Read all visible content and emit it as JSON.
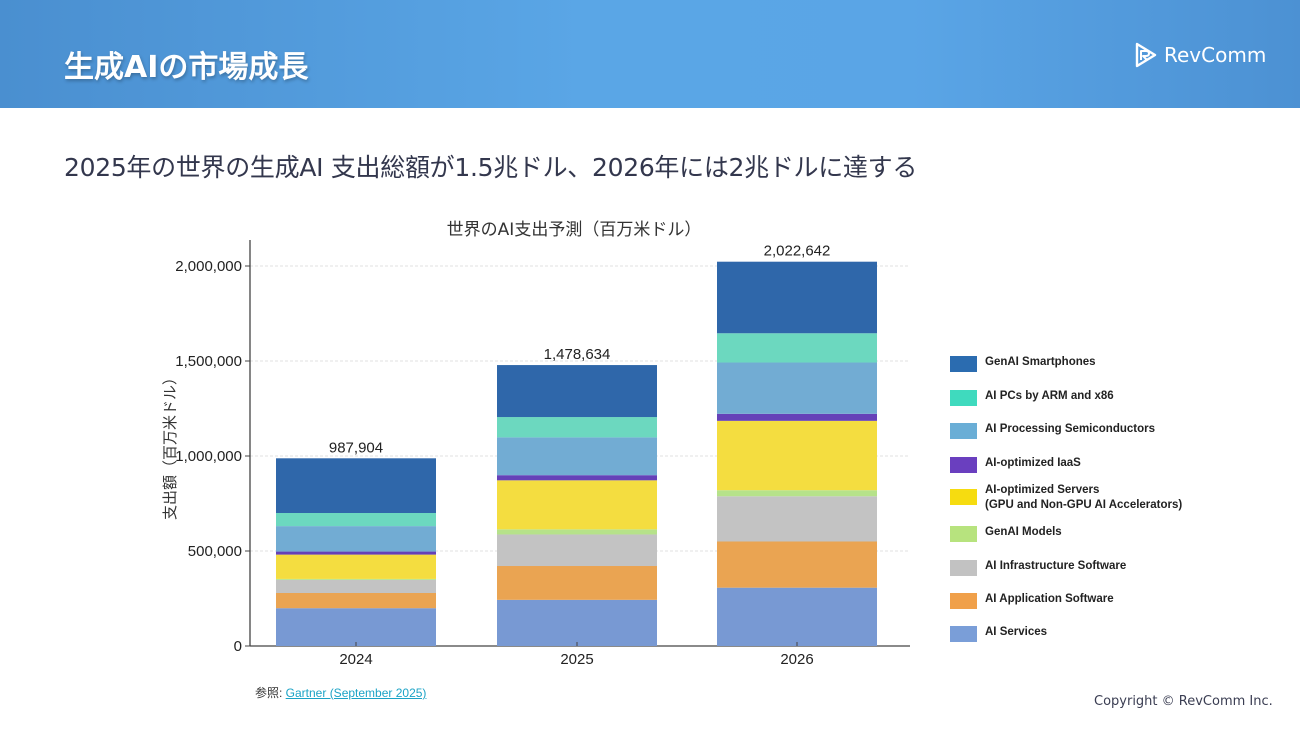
{
  "header": {
    "title": "生成AIの市場成長",
    "logo_text": "RevComm",
    "logo_icon": "revcomm-play-icon"
  },
  "subtitle": "2025年の世界の生成AI 支出総額が1.5兆ドル、2026年には2兆ドルに達する",
  "source": {
    "prefix": "参照: ",
    "link_text": "Gartner (September 2025)"
  },
  "copyright": "Copyright © RevComm Inc.",
  "colors": {
    "header_bg": "#5aa6e6",
    "link": "#1ba3c6"
  },
  "chart_data": {
    "type": "bar",
    "stacked": true,
    "title": "世界のAI支出予測（百万米ドル）",
    "xlabel": "",
    "ylabel": "支出額（百万米ドル）",
    "ylim": [
      0,
      2150000
    ],
    "yticks": [
      0,
      500000,
      1000000,
      1500000,
      2000000
    ],
    "ytick_labels": [
      "0",
      "500,000",
      "1,000,000",
      "1,500,000",
      "2,000,000"
    ],
    "grid": true,
    "legend_position": "right",
    "categories": [
      "2024",
      "2025",
      "2026"
    ],
    "totals": [
      987904,
      1478634,
      2022642
    ],
    "total_labels": [
      "987,904",
      "1,478,634",
      "2,022,642"
    ],
    "series": [
      {
        "name": "AI Services",
        "color": "#7899d3",
        "values": [
          199000,
          243000,
          307000
        ]
      },
      {
        "name": "AI Application Software",
        "color": "#eaa452",
        "values": [
          80000,
          178000,
          243000
        ]
      },
      {
        "name": "AI Infrastructure Software",
        "color": "#c3c3c3",
        "values": [
          69000,
          166000,
          238000
        ]
      },
      {
        "name": "GenAI Models",
        "color": "#b6e28a",
        "values": [
          5000,
          27000,
          32000
        ]
      },
      {
        "name": "AI-optimized Servers\n(GPU and Non-GPU AI Accelerators)",
        "color": "#f4dd40",
        "values": [
          128000,
          258000,
          365000
        ]
      },
      {
        "name": "AI-optimized IaaS",
        "color": "#6541b8",
        "values": [
          16000,
          27000,
          37000
        ]
      },
      {
        "name": "AI Processing Semiconductors",
        "color": "#72acd3",
        "values": [
          134000,
          199000,
          270000
        ]
      },
      {
        "name": "AI PCs by ARM and x86",
        "color": "#6cd8bf",
        "values": [
          69000,
          107000,
          154000
        ]
      },
      {
        "name": "GenAI Smartphones",
        "color": "#2f67aa",
        "values": [
          287904,
          273634,
          376642
        ]
      }
    ]
  },
  "legend": [
    {
      "label": "GenAI Smartphones",
      "color": "#2b6cb0"
    },
    {
      "label": "AI PCs by ARM and x86",
      "color": "#3fdabe"
    },
    {
      "label": "AI Processing Semiconductors",
      "color": "#6aaed6"
    },
    {
      "label": "AI-optimized IaaS",
      "color": "#6a3fbf"
    },
    {
      "label": "AI-optimized Servers\n(GPU and Non-GPU AI Accelerators)",
      "color": "#f6dc10"
    },
    {
      "label": "GenAI Models",
      "color": "#b7e37e"
    },
    {
      "label": "AI Infrastructure Software",
      "color": "#c2c2c2"
    },
    {
      "label": "AI Application Software",
      "color": "#f0a04a"
    },
    {
      "label": "AI Services",
      "color": "#7a9ed8"
    }
  ]
}
